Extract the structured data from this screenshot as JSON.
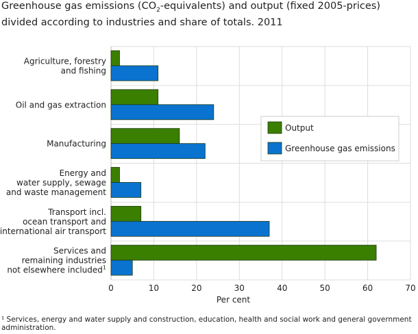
{
  "chart_data": {
    "type": "bar",
    "orientation": "horizontal",
    "title": "Greenhouse gas emissions (CO2-equivalents) and output (fixed 2005-prices) divided according to industries and share of totals. 2011",
    "title_parts": {
      "before": "Greenhouse gas emissions (CO",
      "sub": "2",
      "after": "-equivalents) and output (fixed 2005-prices) divided according to industries and share of totals. 2011"
    },
    "categories": [
      [
        "Agriculture, forestry",
        "and fishing"
      ],
      [
        "Oil and gas extraction"
      ],
      [
        "Manufacturing"
      ],
      [
        "Energy and",
        "water supply, sewage",
        "and waste management"
      ],
      [
        "Transport incl.",
        "ocean transport and",
        "international air transport"
      ],
      [
        "Services and",
        "remaining industries",
        "not elsewhere included"
      ]
    ],
    "category_superscripts": [
      "",
      "",
      "",
      "",
      "",
      "1"
    ],
    "series": [
      {
        "name": "Output",
        "color": "#3a7f00",
        "values": [
          2,
          11,
          16,
          2,
          7,
          62
        ]
      },
      {
        "name": "Greenhouse gas emissions",
        "color": "#0a73d0",
        "values": [
          11,
          24,
          22,
          7,
          37,
          5
        ]
      }
    ],
    "xlabel": "Per cent",
    "xlim": [
      0,
      70
    ],
    "xticks": [
      0,
      10,
      20,
      30,
      40,
      50,
      60,
      70
    ],
    "grid": true,
    "legend_placement": "right"
  },
  "footnote": "¹ Services, energy and water supply and construction, education, health and social work and general government administration."
}
